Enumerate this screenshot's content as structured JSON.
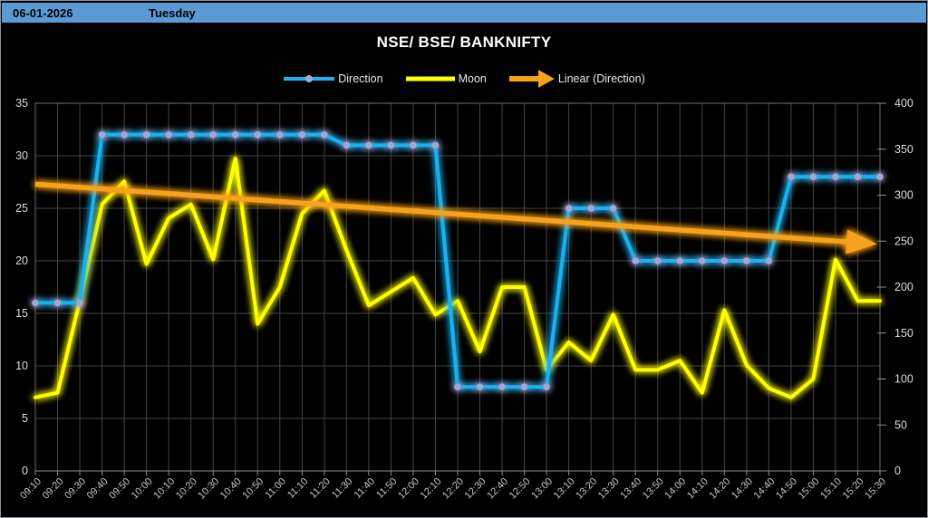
{
  "header": {
    "date": "06-01-2026",
    "day": "Tuesday",
    "bg_color": "#5B9BD5",
    "text_color": "#000000"
  },
  "chart_data": {
    "type": "line",
    "title": "NSE/ BSE/ BANKNIFTY",
    "grid": true,
    "legend_position": "top",
    "x": [
      "09:10",
      "09:20",
      "09:30",
      "09:40",
      "09:50",
      "10:00",
      "10:10",
      "10:20",
      "10:30",
      "10:40",
      "10:50",
      "11:00",
      "11:10",
      "11:20",
      "11:30",
      "11:40",
      "11:50",
      "12:00",
      "12:10",
      "12:20",
      "12:30",
      "12:40",
      "12:50",
      "13:00",
      "13:10",
      "13:20",
      "13:30",
      "13:40",
      "13:50",
      "14:00",
      "14:10",
      "14:20",
      "14:30",
      "14:40",
      "14:50",
      "15:00",
      "15:10",
      "15:20",
      "15:30"
    ],
    "series": [
      {
        "name": "Direction",
        "axis": "left",
        "color": "#1FB0EF",
        "marker_color": "#A2A7D6",
        "values": [
          16,
          16,
          16,
          32,
          32,
          32,
          32,
          32,
          32,
          32,
          32,
          32,
          32,
          32,
          31,
          31,
          31,
          31,
          31,
          8,
          8,
          8,
          8,
          8,
          25,
          25,
          25,
          20,
          20,
          20,
          20,
          20,
          20,
          20,
          28,
          28,
          28,
          28,
          28
        ]
      },
      {
        "name": "Moon",
        "axis": "right",
        "color": "#FFFF00",
        "values": [
          80,
          85,
          185,
          290,
          315,
          225,
          275,
          290,
          230,
          340,
          160,
          200,
          280,
          305,
          240,
          180,
          195,
          210,
          170,
          185,
          130,
          200,
          200,
          110,
          140,
          120,
          170,
          110,
          110,
          120,
          85,
          175,
          115,
          90,
          80,
          100,
          230,
          185,
          185
        ]
      }
    ],
    "trendline": {
      "name": "Linear (Direction)",
      "color": "#F7A11A",
      "axis": "left",
      "start_value": 27.3,
      "end_value": 21.6
    },
    "left_axis": {
      "min": 0,
      "max": 35,
      "ticks": [
        0,
        5,
        10,
        15,
        20,
        25,
        30,
        35
      ]
    },
    "right_axis": {
      "min": 0,
      "max": 400,
      "ticks": [
        0,
        50,
        100,
        150,
        200,
        250,
        300,
        350,
        400
      ]
    },
    "colors": {
      "grid": "#454545",
      "axis": "#909090",
      "plot_border": "#6b6b6b",
      "tick_labels": "#dcdcdc",
      "x_tick_labels": "#c6c6c6"
    }
  }
}
